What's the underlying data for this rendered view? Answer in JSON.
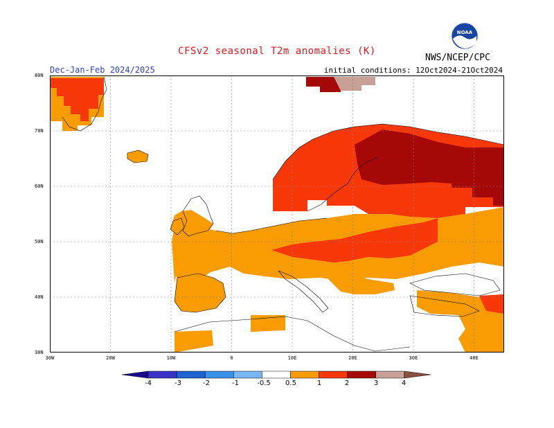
{
  "header": {
    "title": "CFSv2 seasonal T2m anomalies (K)",
    "period": "Dec-Jan-Feb 2024/2025",
    "initial_conditions": "initial conditions: 12Oct2024-21Oct2024",
    "agency": "NWS/NCEP/CPC",
    "logo_text": "NOAA"
  },
  "map": {
    "lat_labels": [
      "80N",
      "70N",
      "60N",
      "50N",
      "40N",
      "30N"
    ],
    "lon_labels": [
      "30W",
      "20W",
      "10W",
      "0",
      "10E",
      "20E",
      "30E",
      "40E"
    ],
    "extent": {
      "lon": [
        -30,
        45
      ],
      "lat": [
        30,
        80
      ]
    }
  },
  "colorbar": {
    "labels": [
      "-4",
      "-3",
      "-2",
      "-1",
      "-0.5",
      "0.5",
      "1",
      "2",
      "3",
      "4"
    ],
    "colors": [
      "#1c0a8c",
      "#3a32c6",
      "#1f63d2",
      "#3a8fe8",
      "#78b6f4",
      "#ffffff",
      "#f99c04",
      "#f9380a",
      "#a60808",
      "#c8a096",
      "#8a5040"
    ]
  }
}
